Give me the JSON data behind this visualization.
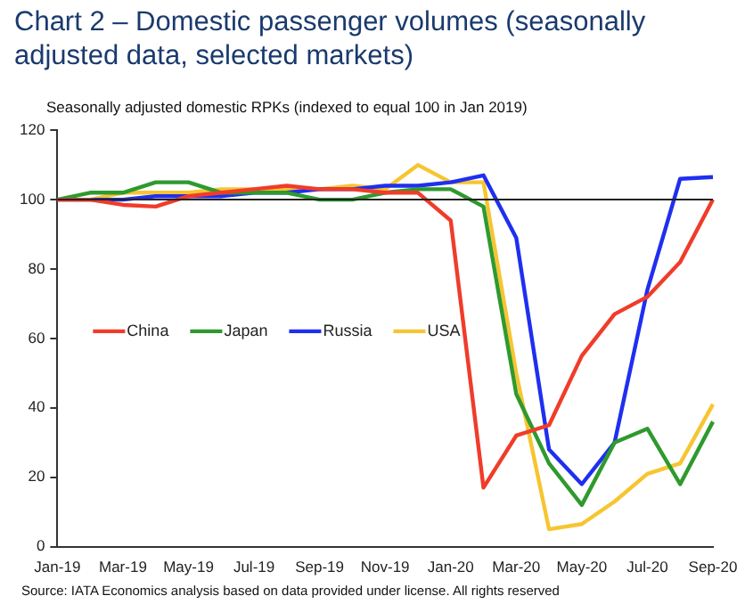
{
  "chart_data": {
    "type": "line",
    "title": "Chart 2 – Domestic passenger volumes (seasonally adjusted data, selected markets)",
    "subtitle": "Seasonally adjusted domestic RPKs (indexed to equal 100 in Jan 2019)",
    "categories": [
      "Jan-19",
      null,
      "Mar-19",
      null,
      "May-19",
      null,
      "Jul-19",
      null,
      "Sep-19",
      null,
      "Nov-19",
      null,
      "Jan-20",
      null,
      "Mar-20",
      null,
      "May-20",
      null,
      "Jul-20",
      null,
      "Sep-20"
    ],
    "series": [
      {
        "name": "China",
        "color": "#f03c2a",
        "values": [
          100,
          100,
          98.5,
          98,
          101,
          102,
          103,
          104,
          103,
          103,
          102,
          102,
          94,
          17,
          32,
          35,
          55,
          67,
          72,
          82,
          100
        ]
      },
      {
        "name": "Japan",
        "color": "#2e9a2e",
        "values": [
          100,
          102,
          102,
          105,
          105,
          102,
          102,
          102,
          100,
          100,
          102,
          103,
          103,
          98,
          44,
          24,
          12,
          30,
          34,
          18,
          36
        ]
      },
      {
        "name": "Russia",
        "color": "#1f2ff0",
        "values": [
          100,
          100,
          100,
          101,
          101,
          101,
          102,
          102,
          103,
          103,
          104,
          104,
          105,
          107,
          89,
          28,
          18,
          30,
          74,
          106,
          106.5
        ]
      },
      {
        "name": "USA",
        "color": "#f7c531",
        "values": [
          100,
          100,
          102,
          102,
          102,
          103,
          103,
          103,
          103,
          104,
          103,
          110,
          105,
          105,
          50,
          5,
          6.5,
          13,
          21,
          24,
          41
        ]
      }
    ],
    "ylim": [
      0,
      120
    ],
    "yticks": [
      0,
      20,
      40,
      60,
      80,
      100,
      120
    ],
    "grid": false,
    "legend": "left",
    "marker": "none",
    "line_style": "solid",
    "ref_lines": [
      {
        "axis": "y",
        "value": 100,
        "color": "#222222"
      }
    ],
    "annotations": [
      "Source: IATA Economics analysis based on data provided under license. All rights reserved"
    ]
  }
}
